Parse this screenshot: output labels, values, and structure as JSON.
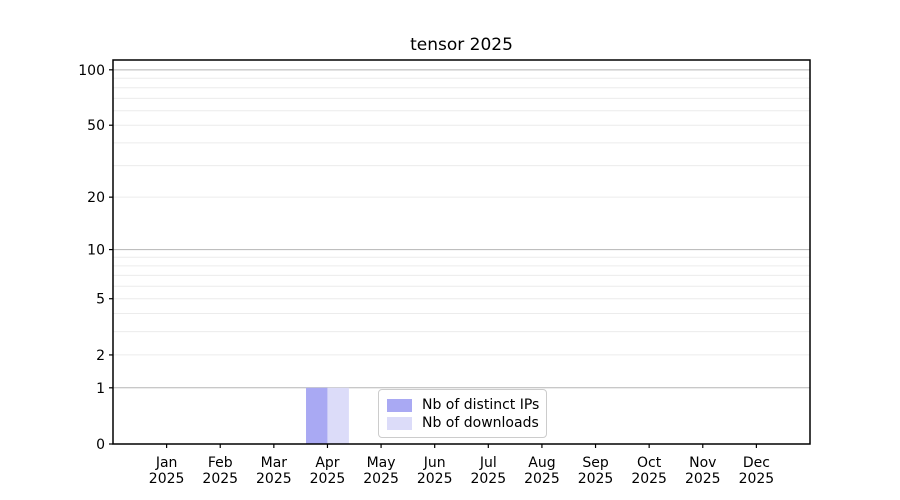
{
  "figure": {
    "background": "#ffffff",
    "text_color": "#000000",
    "spine_color": "#000000",
    "grid_major_color": "#b5b5b5",
    "grid_minor_color": "#ececec"
  },
  "chart_data": {
    "type": "bar",
    "title": "tensor 2025",
    "months": [
      "Jan",
      "Feb",
      "Mar",
      "Apr",
      "May",
      "Jun",
      "Jul",
      "Aug",
      "Sep",
      "Oct",
      "Nov",
      "Dec"
    ],
    "year": "2025",
    "series": [
      {
        "name": "Nb of distinct IPs",
        "color": "#a9a9f3",
        "values": [
          0,
          0,
          0,
          1,
          0,
          0,
          0,
          0,
          0,
          0,
          0,
          0
        ]
      },
      {
        "name": "Nb of downloads",
        "color": "#dcdcf9",
        "values": [
          0,
          0,
          0,
          1,
          0,
          0,
          0,
          0,
          0,
          0,
          0,
          0
        ]
      }
    ],
    "yscale": "log1p",
    "ylim": [
      0,
      113
    ],
    "yticks_labeled": [
      0,
      1,
      2,
      5,
      10,
      20,
      50,
      100
    ],
    "yticks_major_grid": [
      1,
      10,
      100
    ],
    "yticks_minor_grid": [
      2,
      3,
      4,
      5,
      6,
      7,
      8,
      9,
      20,
      30,
      40,
      50,
      60,
      70,
      80,
      90
    ],
    "bar_width_fraction": 0.4,
    "grid": true,
    "legend_position": "lower center"
  }
}
